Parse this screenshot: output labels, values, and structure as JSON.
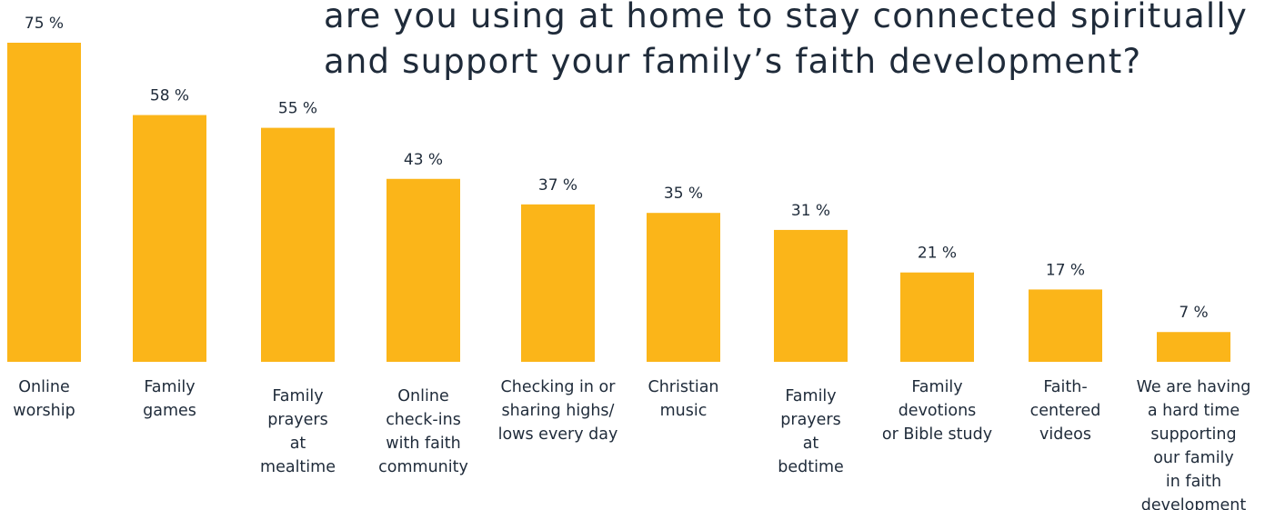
{
  "chart_data": {
    "type": "bar",
    "title_lines": [
      "are you using at home to stay connected spiritually",
      "and support your family’s faith development?"
    ],
    "categories": [
      [
        "Online",
        "worship"
      ],
      [
        "Family",
        "games"
      ],
      [
        "Family",
        "prayers",
        "at",
        "mealtime"
      ],
      [
        "Online",
        "check-ins",
        "with faith",
        "community"
      ],
      [
        "Checking in or",
        "sharing highs/",
        "lows every day"
      ],
      [
        "Christian",
        "music"
      ],
      [
        "Family",
        "prayers",
        "at",
        "bedtime"
      ],
      [
        "Family",
        "devotions",
        "or Bible study"
      ],
      [
        "Faith-",
        "centered",
        "videos"
      ],
      [
        "We are having",
        "a hard time",
        "supporting",
        "our family",
        "in faith",
        "development"
      ]
    ],
    "values": [
      75,
      58,
      55,
      43,
      37,
      35,
      31,
      21,
      17,
      7
    ],
    "value_labels": [
      "75 %",
      "58 %",
      "55 %",
      "43 %",
      "37 %",
      "35 %",
      "31 %",
      "21 %",
      "17 %",
      "7 %"
    ],
    "unit": "%",
    "bar_color": "#fbb519",
    "grid": false,
    "legend": "none"
  }
}
